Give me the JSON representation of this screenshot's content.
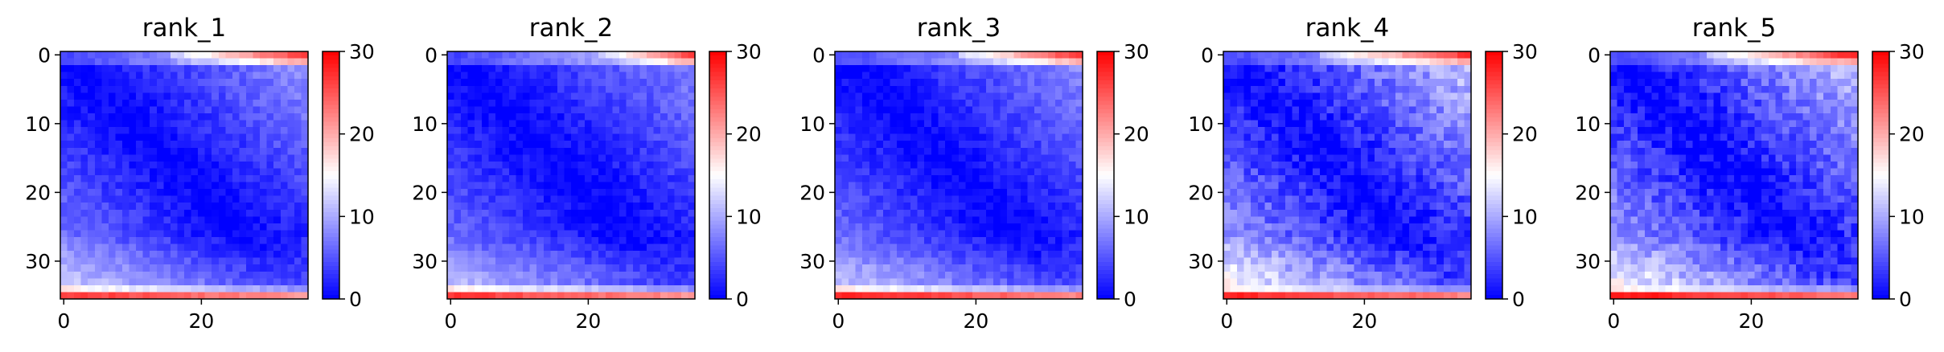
{
  "chart_data": {
    "type": "heatmap",
    "colormap": "bwr",
    "colormap_colors": [
      "#0000ff",
      "#ffffff",
      "#ff0000"
    ],
    "color_range": [
      0,
      30
    ],
    "colorbar_ticks": [
      "0",
      "10",
      "20",
      "30"
    ],
    "grid_size": 36,
    "x_ticks": [
      "0",
      "20"
    ],
    "y_ticks": [
      "0",
      "10",
      "20",
      "30"
    ],
    "panels": [
      {
        "title": "rank_1",
        "top_band": {
          "rows": [
            0,
            1
          ],
          "start_col": 16,
          "peak": 27
        },
        "bottom_band": {
          "rows": [
            34,
            35
          ],
          "peak": 27
        },
        "diagonal_min": 0,
        "offdiag_growth": 9,
        "mid_rows_noise": 1.5
      },
      {
        "title": "rank_2",
        "top_band": {
          "rows": [
            0,
            1
          ],
          "start_col": 22,
          "peak": 26
        },
        "bottom_band": {
          "rows": [
            34,
            35
          ],
          "peak": 27
        },
        "diagonal_min": 0,
        "offdiag_growth": 8,
        "mid_rows_noise": 1.5
      },
      {
        "title": "rank_3",
        "top_band": {
          "rows": [
            0,
            1
          ],
          "start_col": 18,
          "peak": 27
        },
        "bottom_band": {
          "rows": [
            34,
            35
          ],
          "peak": 28
        },
        "diagonal_min": 0,
        "offdiag_growth": 8.5,
        "mid_rows_noise": 1.5
      },
      {
        "title": "rank_4",
        "top_band": {
          "rows": [
            0,
            1
          ],
          "start_col": 14,
          "peak": 27
        },
        "bottom_band": {
          "rows": [
            34,
            35
          ],
          "peak": 28
        },
        "diagonal_min": 0,
        "offdiag_growth": 12,
        "mid_rows_noise": 2.5
      },
      {
        "title": "rank_5",
        "top_band": {
          "rows": [
            0,
            1
          ],
          "start_col": 14,
          "peak": 28
        },
        "bottom_band": {
          "rows": [
            34,
            35
          ],
          "peak": 29
        },
        "diagonal_min": 0,
        "offdiag_growth": 12,
        "mid_rows_noise": 2.5
      }
    ]
  }
}
